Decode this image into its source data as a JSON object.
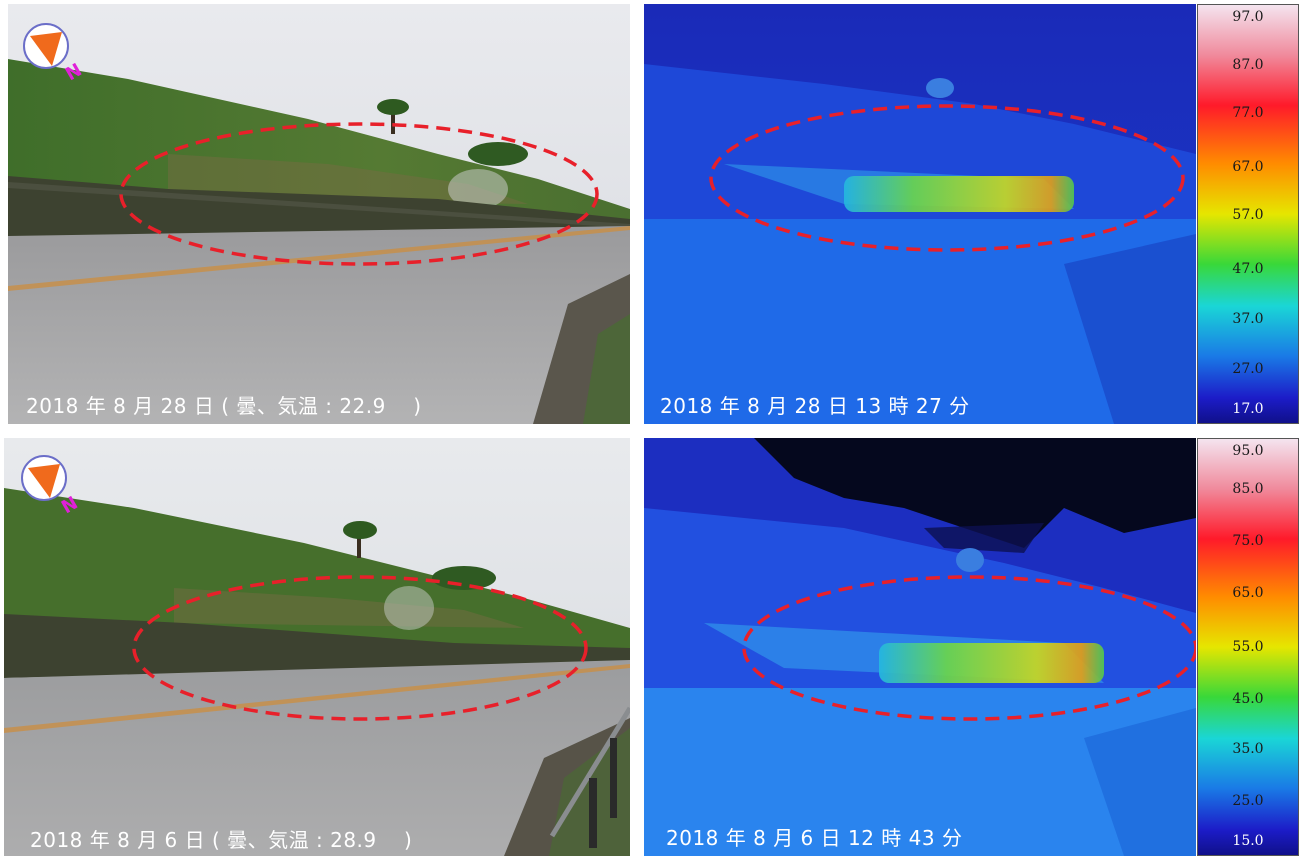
{
  "panels": {
    "photo_top": {
      "caption": "2018 年 8 月 28 日 ( 曇、気温 : 22.9 　)"
    },
    "thermal_top": {
      "caption": "2018 年 8 月 28 日 13 時 27 分"
    },
    "photo_bottom": {
      "caption": "2018 年 8 月 6 日 ( 曇、気温 : 28.9 　)"
    },
    "thermal_bottom": {
      "caption": "2018 年 8 月 6 日 12 時 43 分"
    }
  },
  "compass": {
    "north_label": "N",
    "icon": "north-arrow-icon"
  },
  "scale_top": {
    "ticks": [
      "97.0",
      "87.0",
      "77.0",
      "67.0",
      "57.0",
      "47.0",
      "37.0",
      "27.0",
      "17.0"
    ]
  },
  "scale_bottom": {
    "ticks": [
      "95.0",
      "85.0",
      "75.0",
      "65.0",
      "55.0",
      "45.0",
      "35.0",
      "25.0",
      "15.0"
    ]
  },
  "colors": {
    "ellipse": "#e8202a",
    "caption_text": "#ffffff"
  }
}
